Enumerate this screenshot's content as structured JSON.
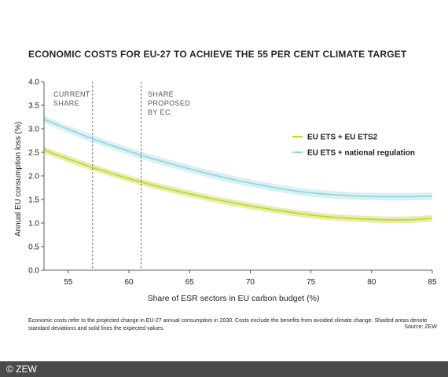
{
  "chart_data": {
    "type": "line",
    "title": "ECONOMIC COSTS FOR EU-27 TO ACHIEVE THE 55 PER CENT CLIMATE TARGET",
    "xlabel": "Share of ESR sectors in EU carbon budget (%)",
    "ylabel": "Annual EU consumption loss (%)",
    "xlim": [
      53,
      85
    ],
    "ylim": [
      0,
      4
    ],
    "xticks": [
      "55",
      "60",
      "65",
      "70",
      "75",
      "80",
      "85"
    ],
    "xtick_values": [
      55,
      60,
      65,
      70,
      75,
      80,
      85
    ],
    "yticks": [
      "0.0",
      "0.5",
      "1.0",
      "1.5",
      "2.0",
      "2.5",
      "3.0",
      "3.5",
      "4.0"
    ],
    "ytick_values": [
      0,
      0.5,
      1,
      1.5,
      2,
      2.5,
      3,
      3.5,
      4
    ],
    "grid": false,
    "legend_position": "right",
    "series": [
      {
        "name": "EU ETS + EU ETS2",
        "color": "#c4d22a",
        "band_color": "#e3eba6",
        "x": [
          53,
          55,
          57,
          59,
          61,
          63,
          65,
          67,
          69,
          71,
          73,
          75,
          77,
          79,
          81,
          83,
          85
        ],
        "y": [
          2.55,
          2.36,
          2.18,
          2.02,
          1.87,
          1.74,
          1.62,
          1.51,
          1.41,
          1.32,
          1.24,
          1.17,
          1.12,
          1.09,
          1.07,
          1.07,
          1.1
        ],
        "band_halfwidth": 0.07
      },
      {
        "name": "EU ETS + national regulation",
        "color": "#8fd3de",
        "band_color": "#d5eef3",
        "x": [
          53,
          55,
          57,
          59,
          61,
          63,
          65,
          67,
          69,
          71,
          73,
          75,
          77,
          79,
          81,
          83,
          85
        ],
        "y": [
          3.2,
          2.99,
          2.79,
          2.61,
          2.44,
          2.29,
          2.15,
          2.02,
          1.9,
          1.8,
          1.71,
          1.64,
          1.6,
          1.57,
          1.56,
          1.56,
          1.57
        ],
        "band_halfwidth": 0.08
      }
    ],
    "annotations": [
      {
        "x": 57,
        "label_lines": [
          "CURRENT",
          "SHARE"
        ]
      },
      {
        "x": 61,
        "label_lines": [
          "SHARE",
          "PROPOSED",
          "BY EC"
        ]
      }
    ]
  },
  "note": {
    "text": "Economic costs refer to the projected change in EU-27 annual consumption in 2030. Costs exclude the benefits from avoided climate change. Shaded areas denote standard deviations and solid lines the expected values.",
    "source": "Source: ZEW"
  },
  "footer": {
    "copyright": "© ZEW",
    "background": "#4a4a4a"
  }
}
